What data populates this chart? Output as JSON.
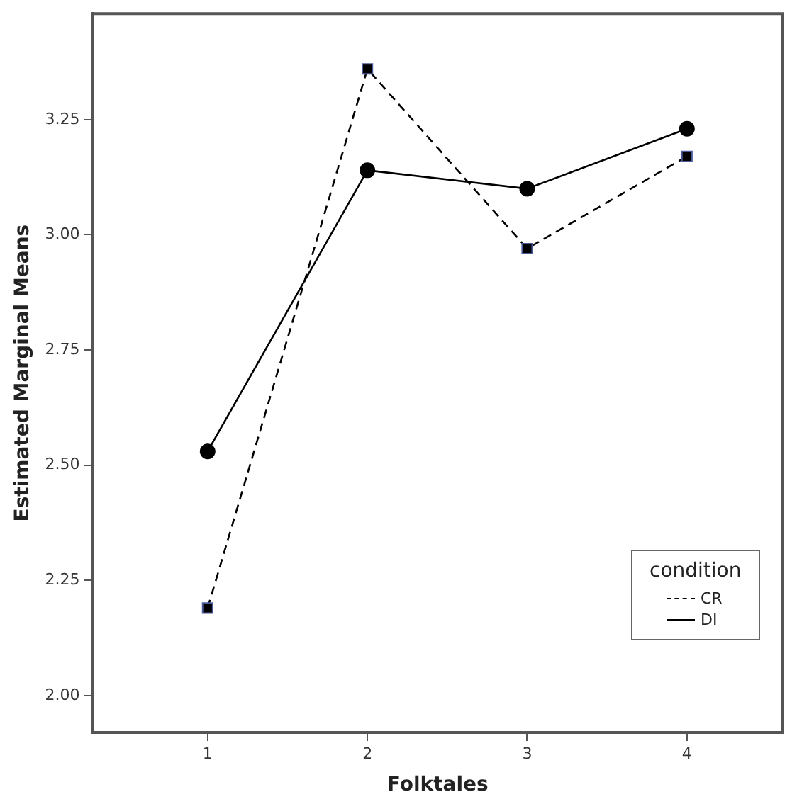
{
  "chart_data": {
    "type": "line",
    "xlabel": "Folktales",
    "ylabel": "Estimated Marginal Means",
    "legend_title": "condition",
    "legend": "bottom right",
    "x": [
      1,
      2,
      3,
      4
    ],
    "xlim": [
      0.28,
      4.6
    ],
    "xticks": [
      1,
      2,
      3,
      4
    ],
    "ylim": [
      1.92,
      3.48
    ],
    "yticks": [
      {
        "value": 2,
        "label": "2.00"
      },
      2.25,
      {
        "value": 2.5,
        "label": "2.50"
      },
      2.75,
      {
        "value": 3,
        "label": "3.00"
      },
      3.25
    ],
    "grid": false,
    "series": [
      {
        "name": "CR",
        "color": "#000000",
        "values": [
          2.19,
          3.36,
          2.97,
          3.17
        ],
        "marker": "square",
        "line_style": "dashed"
      },
      {
        "name": "DI",
        "color": "#000000",
        "values": [
          2.53,
          3.14,
          3.1,
          3.23
        ],
        "marker": "circle",
        "line_style": "solid"
      }
    ]
  }
}
